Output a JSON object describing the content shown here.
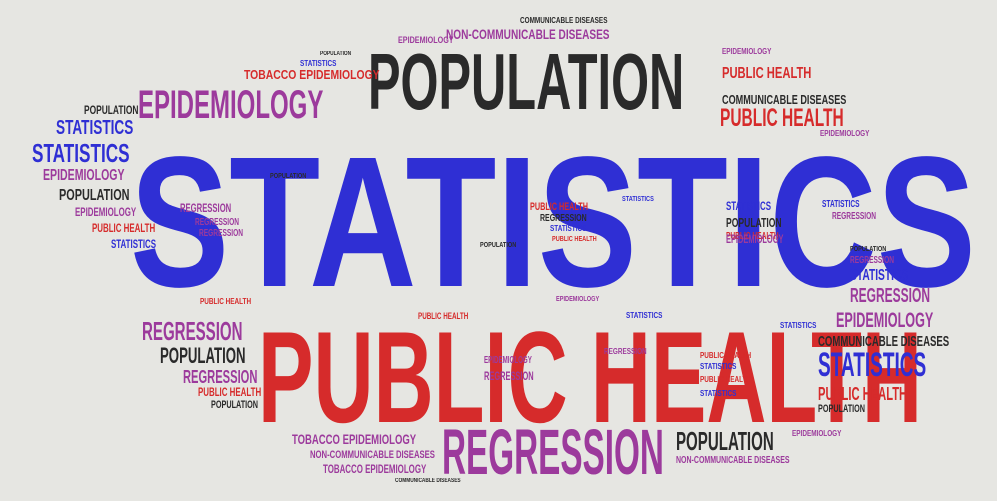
{
  "colors": {
    "background": "#e6e6e2",
    "blue": "#2f2fd4",
    "red": "#d62b2b",
    "purple": "#9c3a9c",
    "dark": "#2a2a2a"
  },
  "words": [
    {
      "text": "STATISTICS",
      "color": "blue"
    },
    {
      "text": "PUBLIC HEALTH",
      "color": "red"
    },
    {
      "text": "POPULATION",
      "color": "dark"
    },
    {
      "text": "REGRESSION",
      "color": "purple"
    },
    {
      "text": "EPIDEMIOLOGY",
      "color": "purple"
    },
    {
      "text": "TOBACCO EPIDEMIOLOGY",
      "color": "red"
    },
    {
      "text": "NON-COMMUNICABLE DISEASES",
      "color": "purple"
    },
    {
      "text": "COMMUNICABLE DISEASES",
      "color": "dark"
    },
    {
      "text": "EPIDEMIOLOGY",
      "color": "purple"
    },
    {
      "text": "POPULATION",
      "color": "dark"
    },
    {
      "text": "STATISTICS",
      "color": "blue"
    },
    {
      "text": "STATISTICS",
      "color": "blue"
    },
    {
      "text": "EPIDEMIOLOGY",
      "color": "purple"
    },
    {
      "text": "POPULATION",
      "color": "dark"
    },
    {
      "text": "EPIDEMIOLOGY",
      "color": "purple"
    },
    {
      "text": "PUBLIC HEALTH",
      "color": "red"
    },
    {
      "text": "STATISTICS",
      "color": "blue"
    },
    {
      "text": "PUBLIC HEALTH",
      "color": "red"
    },
    {
      "text": "COMMUNICABLE DISEASES",
      "color": "dark"
    },
    {
      "text": "PUBLIC HEALTH",
      "color": "red"
    },
    {
      "text": "EPIDEMIOLOGY",
      "color": "purple"
    },
    {
      "text": "REGRESSION",
      "color": "purple"
    },
    {
      "text": "EPIDEMIOLOGY",
      "color": "purple"
    },
    {
      "text": "COMMUNICABLE DISEASES",
      "color": "dark"
    },
    {
      "text": "STATISTICS",
      "color": "blue"
    },
    {
      "text": "PUBLIC HEALTH",
      "color": "red"
    },
    {
      "text": "REGRESSION",
      "color": "purple"
    },
    {
      "text": "POPULATION",
      "color": "dark"
    },
    {
      "text": "REGRESSION",
      "color": "purple"
    },
    {
      "text": "PUBLIC HEALTH",
      "color": "red"
    },
    {
      "text": "POPULATION",
      "color": "dark"
    },
    {
      "text": "TOBACCO EPIDEMIOLOGY",
      "color": "purple"
    },
    {
      "text": "NON-COMMUNICABLE DISEASES",
      "color": "purple"
    },
    {
      "text": "TOBACCO EPIDEMIOLOGY",
      "color": "purple"
    },
    {
      "text": "POPULATION",
      "color": "dark"
    },
    {
      "text": "NON-COMMUNICABLE DISEASES",
      "color": "purple"
    },
    {
      "text": "PUBLIC HEALTH",
      "color": "red"
    },
    {
      "text": "COMMUNICABLE DISEASES",
      "color": "dark"
    },
    {
      "text": "STATISTICS",
      "color": "blue"
    },
    {
      "text": "POPULATION",
      "color": "dark"
    },
    {
      "text": "EPIDEMIOLOGY",
      "color": "purple"
    },
    {
      "text": "PUBLIC HEALTH",
      "color": "red"
    },
    {
      "text": "STATISTICS",
      "color": "blue"
    },
    {
      "text": "STATISTICS",
      "color": "blue"
    },
    {
      "text": "POPULATION",
      "color": "dark"
    },
    {
      "text": "REGRESSION",
      "color": "purple"
    },
    {
      "text": "REGRESSION",
      "color": "purple"
    },
    {
      "text": "PUBLIC HEALTH",
      "color": "red"
    },
    {
      "text": "REGRESSION",
      "color": "purple"
    },
    {
      "text": "STATISTICS",
      "color": "blue"
    },
    {
      "text": "REGRESSION",
      "color": "purple"
    },
    {
      "text": "STATISTICS",
      "color": "blue"
    },
    {
      "text": "STATISTICS",
      "color": "blue"
    },
    {
      "text": "POPULATION",
      "color": "dark"
    },
    {
      "text": "PUBLIC HEALTH",
      "color": "red"
    },
    {
      "text": "EPIDEMIOLOGY",
      "color": "purple"
    },
    {
      "text": "STATISTICS",
      "color": "blue"
    },
    {
      "text": "POPULATION",
      "color": "dark"
    },
    {
      "text": "PUBLIC HEALTH",
      "color": "red"
    },
    {
      "text": "STATISTICS",
      "color": "blue"
    },
    {
      "text": "REGRESSION",
      "color": "purple"
    },
    {
      "text": "PUBLIC HEALTH",
      "color": "red"
    },
    {
      "text": "STATISTICS",
      "color": "blue"
    },
    {
      "text": "STATISTICS",
      "color": "blue"
    },
    {
      "text": "EPIDEMIOLOGY",
      "color": "purple"
    },
    {
      "text": "PUBLIC HEALTH",
      "color": "red"
    },
    {
      "text": "REGRESSION",
      "color": "purple"
    },
    {
      "text": "EPIDEMIOLOGY",
      "color": "purple"
    },
    {
      "text": "EPIDEMIOLOGY",
      "color": "purple"
    },
    {
      "text": "POPULATION",
      "color": "dark"
    }
  ]
}
